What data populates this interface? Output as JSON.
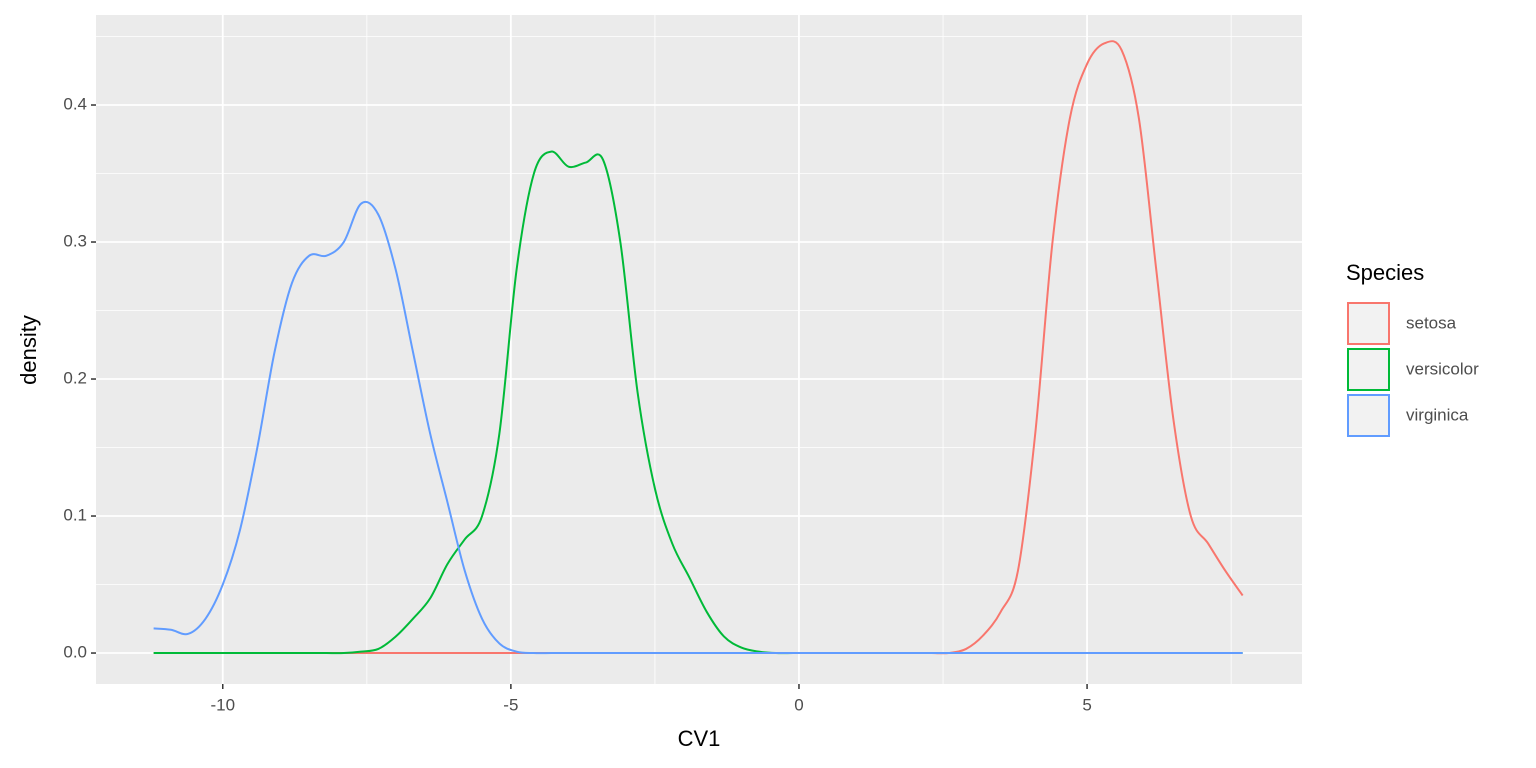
{
  "chart_data": {
    "type": "line",
    "x_label": "CV1",
    "y_label": "density",
    "legend_title": "Species",
    "legend": "right",
    "x": [
      -11.2,
      -10.9,
      -10.6,
      -10.3,
      -10.0,
      -9.7,
      -9.4,
      -9.1,
      -8.8,
      -8.5,
      -8.2,
      -7.9,
      -7.6,
      -7.3,
      -7.0,
      -6.7,
      -6.4,
      -6.1,
      -5.8,
      -5.5,
      -5.2,
      -4.9,
      -4.6,
      -4.3,
      -4.0,
      -3.7,
      -3.4,
      -3.1,
      -2.8,
      -2.5,
      -2.2,
      -1.9,
      -1.6,
      -1.3,
      -1.0,
      -0.7,
      -0.4,
      -0.1,
      0.2,
      0.5,
      0.8,
      1.1,
      1.4,
      1.7,
      2.0,
      2.3,
      2.6,
      2.9,
      3.2,
      3.5,
      3.8,
      4.1,
      4.4,
      4.7,
      5.0,
      5.3,
      5.6,
      5.9,
      6.2,
      6.5,
      6.8,
      7.1,
      7.4,
      7.7
    ],
    "series": [
      {
        "name": "setosa",
        "color": "#f8766d",
        "values": [
          0,
          0,
          0,
          0,
          0,
          0,
          0,
          0,
          0,
          0,
          0,
          0,
          0,
          0,
          0,
          0,
          0,
          0,
          0,
          0,
          0,
          0,
          0,
          0,
          0,
          0,
          0,
          0,
          0,
          0,
          0,
          0,
          0,
          0,
          0,
          0,
          0,
          0,
          0,
          0,
          0,
          0,
          0,
          0,
          0,
          0,
          0,
          0.003,
          0.013,
          0.03,
          0.06,
          0.16,
          0.3,
          0.39,
          0.43,
          0.445,
          0.44,
          0.39,
          0.28,
          0.17,
          0.1,
          0.08,
          0.06,
          0.042
        ]
      },
      {
        "name": "versicolor",
        "color": "#00ba38",
        "values": [
          0,
          0,
          0,
          0,
          0,
          0,
          0,
          0,
          0,
          0,
          0,
          0,
          0.001,
          0.003,
          0.012,
          0.025,
          0.04,
          0.065,
          0.083,
          0.1,
          0.16,
          0.28,
          0.35,
          0.366,
          0.355,
          0.358,
          0.36,
          0.3,
          0.19,
          0.12,
          0.08,
          0.055,
          0.03,
          0.012,
          0.004,
          0.001,
          0,
          0,
          0,
          0,
          0,
          0,
          0,
          0,
          0,
          0,
          0,
          0,
          0,
          0,
          0,
          0,
          0,
          0,
          0,
          0,
          0,
          0,
          0,
          0,
          0,
          0,
          0,
          0
        ]
      },
      {
        "name": "virginica",
        "color": "#619cff",
        "values": [
          0.018,
          0.017,
          0.014,
          0.025,
          0.05,
          0.09,
          0.15,
          0.22,
          0.27,
          0.29,
          0.29,
          0.3,
          0.328,
          0.32,
          0.28,
          0.22,
          0.16,
          0.11,
          0.06,
          0.025,
          0.007,
          0.001,
          0,
          0,
          0,
          0,
          0,
          0,
          0,
          0,
          0,
          0,
          0,
          0,
          0,
          0,
          0,
          0,
          0,
          0,
          0,
          0,
          0,
          0,
          0,
          0,
          0,
          0,
          0,
          0,
          0,
          0,
          0,
          0,
          0,
          0,
          0,
          0,
          0,
          0,
          0,
          0,
          0,
          0
        ]
      }
    ],
    "xlim": [
      -12.2,
      8.73
    ],
    "ylim": [
      -0.0226,
      0.4657
    ],
    "xticks": [
      -10,
      -5,
      0,
      5
    ],
    "yticks": [
      {
        "value": 0,
        "label": "0.0"
      },
      0.1,
      0.2,
      0.3,
      0.4
    ],
    "grid": true,
    "minor_grid": true
  }
}
